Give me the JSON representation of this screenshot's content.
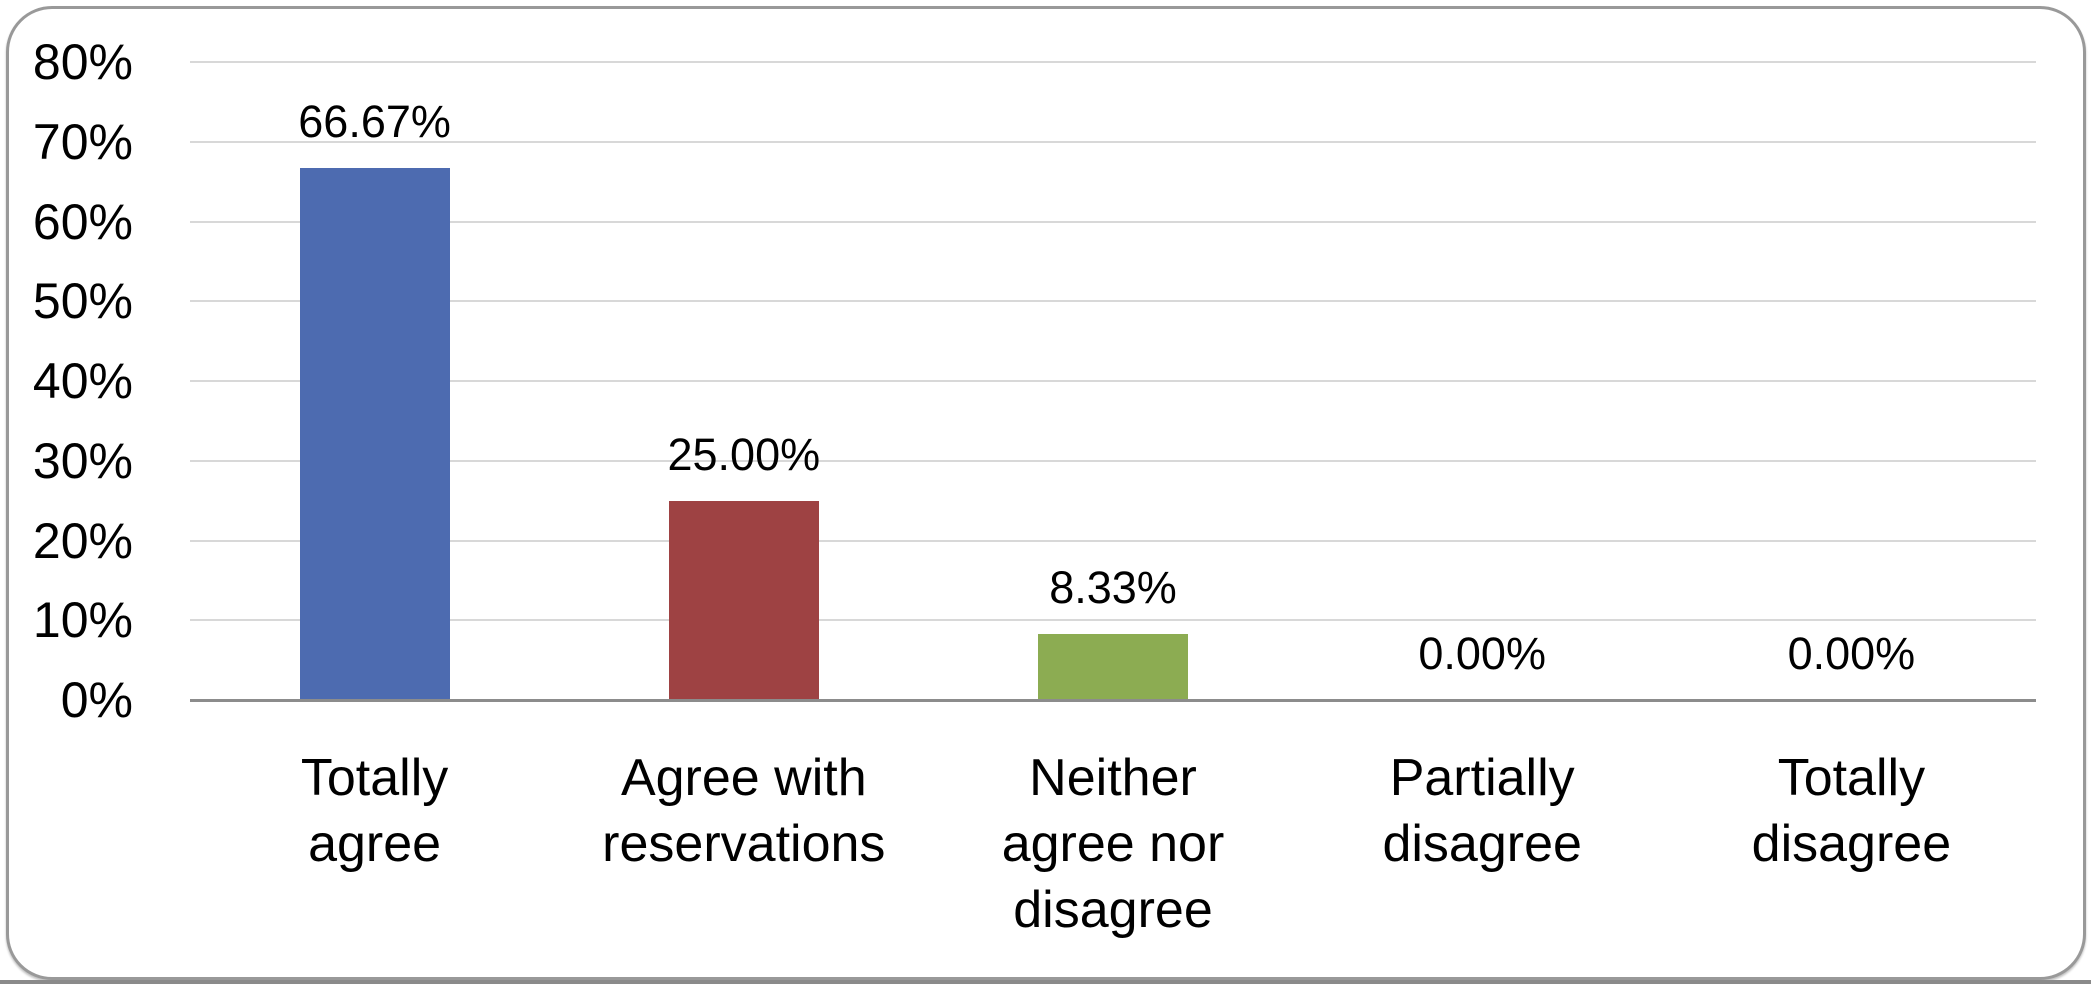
{
  "chart_data": {
    "type": "bar",
    "title": "",
    "xlabel": "",
    "ylabel": "",
    "categories": [
      "Totally agree",
      "Agree with reservations",
      "Neither agree nor disagree",
      "Partially disagree",
      "Totally disagree"
    ],
    "category_label_lines": [
      [
        "Totally",
        "agree"
      ],
      [
        "Agree with",
        "reservations"
      ],
      [
        "Neither",
        "agree nor",
        "disagree"
      ],
      [
        "Partially",
        "disagree"
      ],
      [
        "Totally",
        "disagree"
      ]
    ],
    "values": [
      66.67,
      25.0,
      8.33,
      0.0,
      0.0
    ],
    "data_labels": [
      "66.67%",
      "25.00%",
      "8.33%",
      "0.00%",
      "0.00%"
    ],
    "bar_colors": [
      "#4D6BB0",
      "#9E4243",
      "#8CAC52",
      null,
      null
    ],
    "ylim": [
      0,
      80
    ],
    "ytick_values": [
      80,
      70,
      60,
      50,
      40,
      30,
      20,
      10,
      0
    ],
    "ytick_labels": [
      "80%",
      "70%",
      "60%",
      "50%",
      "40%",
      "30%",
      "20%",
      "10%",
      "0%"
    ],
    "grid": true,
    "legend": false
  },
  "style_colors": {
    "gridline": "#D8D8D8",
    "axis_line": "#8C8C8C",
    "frame_border": "#999999",
    "label_text": "#000000",
    "background": "#FFFFFF"
  }
}
